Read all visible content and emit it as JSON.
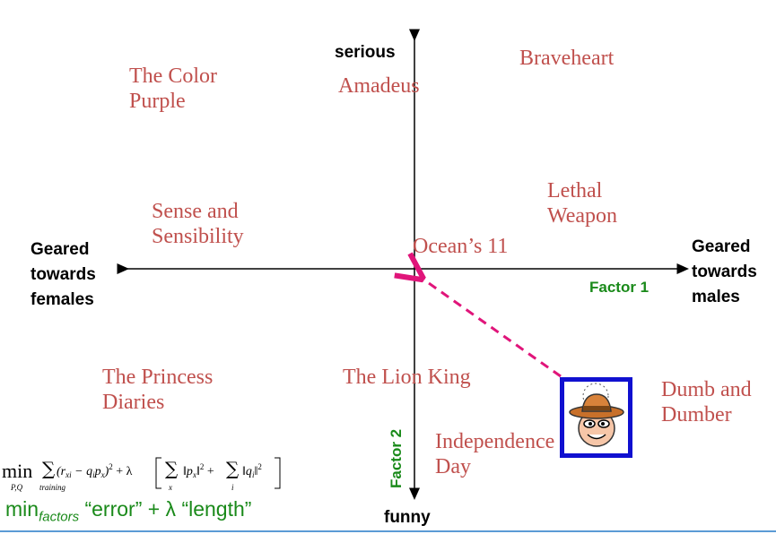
{
  "axes": {
    "top_label": "serious",
    "bottom_label": "funny",
    "left_label": "Geared\ntowards\nfemales",
    "right_label": "Geared\ntowards\nmales",
    "factor1_label": "Factor 1",
    "factor2_label": "Factor 2"
  },
  "movies": [
    {
      "title": "The Color\nPurple"
    },
    {
      "title": "Amadeus"
    },
    {
      "title": "Braveheart"
    },
    {
      "title": "Lethal\nWeapon"
    },
    {
      "title": "Sense and\nSensibility"
    },
    {
      "title": "Ocean’s 11"
    },
    {
      "title": "The Princess\nDiaries"
    },
    {
      "title": "The Lion King"
    },
    {
      "title": "Dumb and\nDumber"
    },
    {
      "title": "Independence\nDay"
    }
  ],
  "formula": {
    "min": "min",
    "min_subscript": "P,Q",
    "sum_subscript": "training",
    "tagline_min": "min",
    "tagline_factors": "factors",
    "tagline_rest": " “error” + λ “length”"
  },
  "colors": {
    "movie": "#c0504d",
    "factor": "#1a8a1a",
    "arrow": "#e0157a",
    "box": "#1010d0"
  },
  "icons": {
    "user_avatar": "cowboy-face-icon"
  }
}
